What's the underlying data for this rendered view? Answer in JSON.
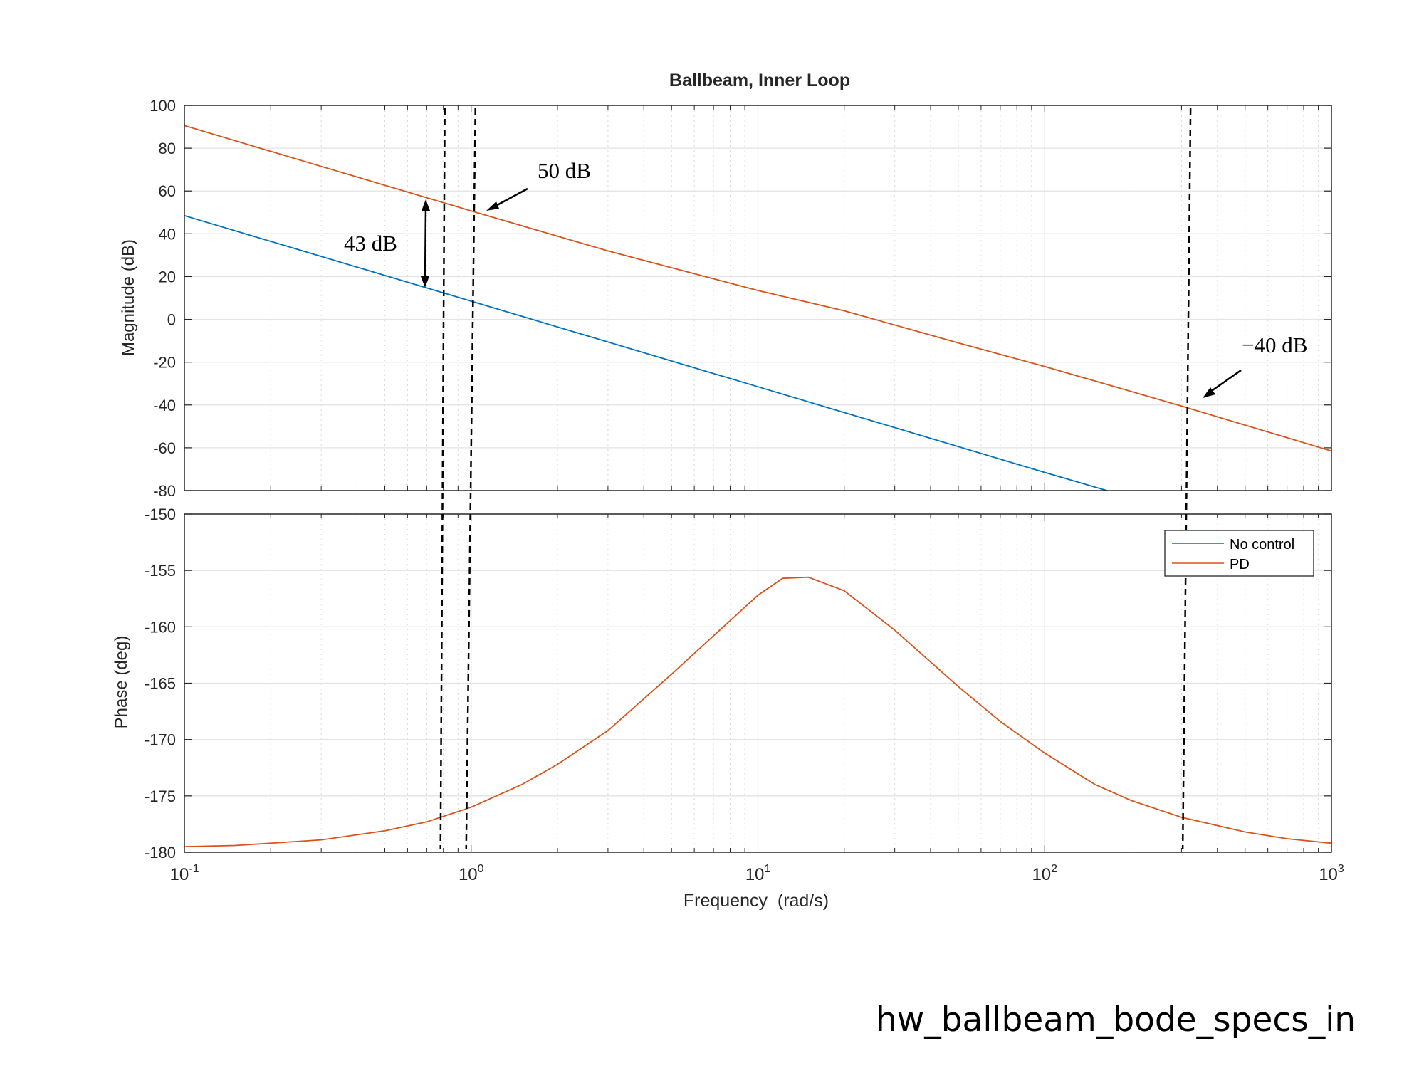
{
  "chart_data": [
    {
      "type": "line",
      "panel": "magnitude",
      "title": "Ballbeam, Inner Loop",
      "ylabel": "Magnitude (dB)",
      "xscale": "log",
      "xlim": [
        0.1,
        1000
      ],
      "ylim": [
        -80,
        100
      ],
      "yticks": [
        -80,
        -60,
        -40,
        -20,
        0,
        20,
        40,
        60,
        80,
        100
      ],
      "grid": true,
      "series": [
        {
          "name": "No control",
          "color": "#0072bd",
          "x": [
            0.1,
            1,
            10,
            100,
            165
          ],
          "y": [
            48.5,
            8.5,
            -31.5,
            -71.5,
            -80
          ]
        },
        {
          "name": "PD",
          "color": "#d95319",
          "x": [
            0.1,
            0.3,
            1,
            3,
            10,
            20,
            50,
            100,
            300,
            1000
          ],
          "y": [
            90.6,
            71.5,
            50.7,
            32,
            13.5,
            4,
            -11,
            -22,
            -40.5,
            -61.5
          ]
        }
      ],
      "annotations": [
        {
          "text": "50 dB",
          "x": 1.15,
          "y": 51
        },
        {
          "text": "43 dB",
          "x": 0.7,
          "y_from": 15,
          "y_to": 57
        },
        {
          "text": "−40 dB",
          "x": 330,
          "y": -40
        }
      ]
    },
    {
      "type": "line",
      "panel": "phase",
      "xlabel": "Frequency  (rad/s)",
      "ylabel": "Phase (deg)",
      "xscale": "log",
      "xlim": [
        0.1,
        1000
      ],
      "ylim": [
        -180,
        -150
      ],
      "xticks": [
        0.1,
        1,
        10,
        100,
        1000
      ],
      "xtick_labels": [
        {
          "base": "10",
          "exp": "-1"
        },
        {
          "base": "10",
          "exp": "0"
        },
        {
          "base": "10",
          "exp": "1"
        },
        {
          "base": "10",
          "exp": "2"
        },
        {
          "base": "10",
          "exp": "3"
        }
      ],
      "yticks": [
        -180,
        -175,
        -170,
        -165,
        -160,
        -155,
        -150
      ],
      "grid": true,
      "legend": {
        "placement": "top-right"
      },
      "series": [
        {
          "name": "No control",
          "color": "#0072bd",
          "x": [
            0.1,
            1000
          ],
          "y": [
            -180,
            -180
          ]
        },
        {
          "name": "PD",
          "color": "#d95319",
          "x": [
            0.1,
            0.15,
            0.2,
            0.3,
            0.5,
            0.7,
            1,
            1.5,
            2,
            3,
            5,
            7,
            10,
            12.2,
            15,
            20,
            30,
            50,
            70,
            100,
            150,
            200,
            300,
            500,
            700,
            1000
          ],
          "y": [
            -179.5,
            -179.4,
            -179.2,
            -178.9,
            -178.1,
            -177.3,
            -176,
            -174,
            -172.2,
            -169.2,
            -164.2,
            -160.8,
            -157.2,
            -155.7,
            -155.6,
            -156.8,
            -160.3,
            -165.3,
            -168.4,
            -171.2,
            -174,
            -175.4,
            -176.9,
            -178.2,
            -178.8,
            -179.2
          ]
        }
      ],
      "reference_lines": [
        0.8,
        1,
        310
      ]
    }
  ],
  "caption": "hw_ballbeam_bode_specs_in"
}
